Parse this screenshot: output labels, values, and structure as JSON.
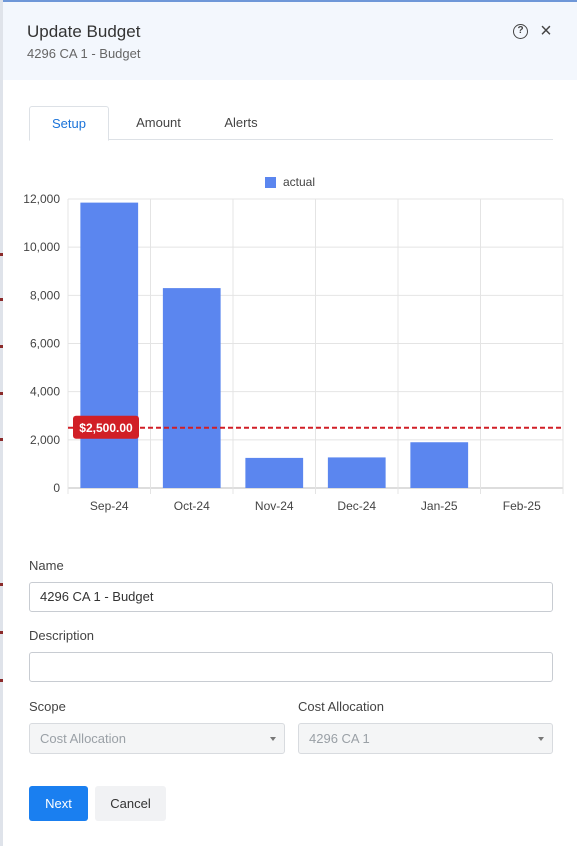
{
  "dialog": {
    "title": "Update Budget",
    "subtitle": "4296 CA 1 - Budget",
    "help_icon": "help-circle-icon",
    "close_icon": "close-icon"
  },
  "tabs": [
    {
      "label": "Setup",
      "active": true
    },
    {
      "label": "Amount",
      "active": false
    },
    {
      "label": "Alerts",
      "active": false
    }
  ],
  "chart_data": {
    "type": "bar",
    "categories": [
      "Sep-24",
      "Oct-24",
      "Nov-24",
      "Dec-24",
      "Jan-25",
      "Feb-25"
    ],
    "series": [
      {
        "name": "actual",
        "values": [
          11850,
          8300,
          1250,
          1270,
          1900,
          0
        ],
        "color": "#5b86ef"
      }
    ],
    "ylim": [
      0,
      12000
    ],
    "yticks": [
      0,
      2000,
      4000,
      6000,
      8000,
      10000,
      12000
    ],
    "ytick_labels": [
      "0",
      "2,000",
      "4,000",
      "6,000",
      "8,000",
      "10,000",
      "12,000"
    ],
    "threshold": {
      "value": 2500,
      "label": "$2,500.00",
      "color": "#d11f26"
    },
    "legend": "top-center",
    "grid": true
  },
  "form": {
    "name_label": "Name",
    "name_value": "4296 CA 1 - Budget",
    "description_label": "Description",
    "description_value": "",
    "scope_label": "Scope",
    "scope_value": "Cost Allocation",
    "cost_allocation_label": "Cost Allocation",
    "cost_allocation_value": "4296 CA 1"
  },
  "buttons": {
    "next": "Next",
    "cancel": "Cancel"
  },
  "colors": {
    "accent": "#1a7ff0",
    "bar": "#5b86ef",
    "threshold": "#d11f26",
    "header_bg": "#f3f7fd"
  }
}
